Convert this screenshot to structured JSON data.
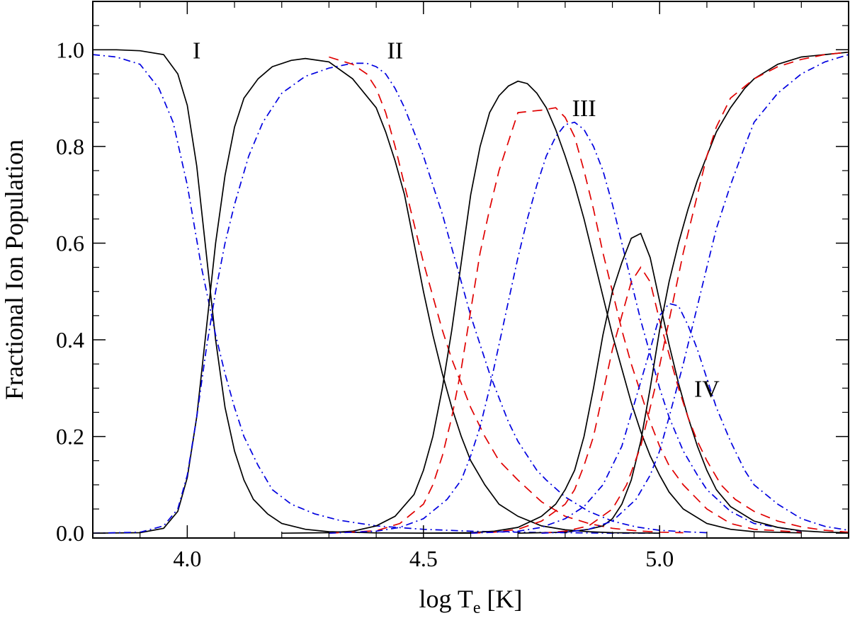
{
  "chart_data": {
    "type": "line",
    "title": "",
    "xlabel": "log T",
    "xlabel_subscript": "e",
    "xlabel_unit": " [K]",
    "ylabel": "Fractional Ion Population",
    "xlim": [
      3.8,
      5.4
    ],
    "ylim": [
      -0.01,
      1.1
    ],
    "x_ticks": [
      4.0,
      4.5,
      5.0
    ],
    "x_tick_labels": [
      "4.0",
      "4.5",
      "5.0"
    ],
    "y_ticks": [
      0.0,
      0.2,
      0.4,
      0.6,
      0.8,
      1.0
    ],
    "y_tick_labels": [
      "0.0",
      "0.2",
      "0.4",
      "0.6",
      "0.8",
      "1.0"
    ],
    "grid": false,
    "legend": "none",
    "line_styles": {
      "solid": {
        "color": "#000000",
        "dash": ""
      },
      "dashed": {
        "color": "#e00000",
        "dash": "14 9"
      },
      "dashdot": {
        "color": "#0000e0",
        "dash": "10 5 2 5"
      }
    },
    "annotations": [
      {
        "text": "I",
        "x": 4.02,
        "y": 1.0
      },
      {
        "text": "II",
        "x": 4.44,
        "y": 1.0
      },
      {
        "text": "III",
        "x": 4.84,
        "y": 0.88
      },
      {
        "text": "IV",
        "x": 5.1,
        "y": 0.3
      }
    ],
    "series": [
      {
        "style": "solid",
        "x": [
          3.8,
          3.85,
          3.9,
          3.95,
          3.98,
          4.0,
          4.02,
          4.04,
          4.06,
          4.08,
          4.1,
          4.12,
          4.14,
          4.17,
          4.2,
          4.25,
          4.3,
          4.4,
          4.5,
          4.6
        ],
        "y": [
          1.0,
          1.0,
          0.998,
          0.99,
          0.95,
          0.885,
          0.76,
          0.58,
          0.4,
          0.26,
          0.17,
          0.11,
          0.07,
          0.04,
          0.02,
          0.008,
          0.003,
          0.0005,
          0.0001,
          0
        ]
      },
      {
        "style": "dashdot",
        "x": [
          3.8,
          3.85,
          3.9,
          3.94,
          3.97,
          4.0,
          4.03,
          4.06,
          4.08,
          4.1,
          4.12,
          4.15,
          4.18,
          4.22,
          4.27,
          4.32,
          4.4,
          4.5,
          4.6,
          4.7,
          4.8,
          4.9,
          5.0
        ],
        "y": [
          0.99,
          0.985,
          0.97,
          0.92,
          0.85,
          0.72,
          0.55,
          0.41,
          0.33,
          0.26,
          0.2,
          0.14,
          0.09,
          0.06,
          0.04,
          0.027,
          0.015,
          0.008,
          0.004,
          0.002,
          0.001,
          0,
          0
        ]
      },
      {
        "style": "solid",
        "x": [
          3.8,
          3.9,
          3.95,
          3.98,
          4.0,
          4.02,
          4.04,
          4.06,
          4.08,
          4.1,
          4.12,
          4.15,
          4.18,
          4.22,
          4.25,
          4.3,
          4.35,
          4.4,
          4.42,
          4.44,
          4.46,
          4.48,
          4.5,
          4.52,
          4.54,
          4.56,
          4.58,
          4.6,
          4.63,
          4.66,
          4.7,
          4.75,
          4.8,
          4.85,
          4.9,
          4.95,
          5.0
        ],
        "y": [
          0,
          0.001,
          0.01,
          0.045,
          0.115,
          0.24,
          0.42,
          0.6,
          0.74,
          0.84,
          0.9,
          0.94,
          0.965,
          0.978,
          0.982,
          0.975,
          0.94,
          0.88,
          0.83,
          0.77,
          0.7,
          0.6,
          0.5,
          0.41,
          0.33,
          0.26,
          0.2,
          0.15,
          0.1,
          0.06,
          0.035,
          0.015,
          0.007,
          0.003,
          0.001,
          0.0005,
          0
        ]
      },
      {
        "style": "dashdot",
        "x": [
          3.8,
          3.9,
          3.95,
          3.98,
          4.0,
          4.02,
          4.04,
          4.06,
          4.08,
          4.1,
          4.13,
          4.16,
          4.2,
          4.25,
          4.3,
          4.35,
          4.38,
          4.4,
          4.42,
          4.44,
          4.46,
          4.48,
          4.5,
          4.52,
          4.54,
          4.56,
          4.58,
          4.6,
          4.62,
          4.64,
          4.66,
          4.68,
          4.7,
          4.72,
          4.74,
          4.76,
          4.8,
          4.85,
          4.9,
          4.95,
          5.0,
          5.05,
          5.1
        ],
        "y": [
          0,
          0.002,
          0.015,
          0.05,
          0.12,
          0.24,
          0.38,
          0.5,
          0.6,
          0.68,
          0.78,
          0.85,
          0.91,
          0.945,
          0.962,
          0.972,
          0.972,
          0.965,
          0.95,
          0.92,
          0.88,
          0.83,
          0.78,
          0.72,
          0.66,
          0.59,
          0.52,
          0.45,
          0.39,
          0.33,
          0.28,
          0.23,
          0.19,
          0.16,
          0.13,
          0.11,
          0.075,
          0.045,
          0.025,
          0.013,
          0.006,
          0.003,
          0.001
        ]
      },
      {
        "style": "dashed",
        "x": [
          4.3,
          4.35,
          4.38,
          4.4,
          4.42,
          4.44,
          4.46,
          4.48,
          4.5,
          4.52,
          4.54,
          4.56,
          4.58,
          4.6,
          4.63,
          4.66,
          4.7,
          4.75,
          4.8,
          4.85,
          4.9,
          4.95,
          5.0,
          5.05
        ],
        "y": [
          0.985,
          0.97,
          0.95,
          0.92,
          0.87,
          0.8,
          0.72,
          0.64,
          0.56,
          0.49,
          0.42,
          0.36,
          0.31,
          0.26,
          0.2,
          0.15,
          0.11,
          0.065,
          0.035,
          0.02,
          0.01,
          0.005,
          0.002,
          0.001
        ]
      },
      {
        "style": "solid",
        "x": [
          4.2,
          4.3,
          4.35,
          4.4,
          4.44,
          4.48,
          4.5,
          4.52,
          4.54,
          4.56,
          4.58,
          4.6,
          4.62,
          4.64,
          4.66,
          4.68,
          4.7,
          4.72,
          4.74,
          4.76,
          4.78,
          4.8,
          4.82,
          4.84,
          4.86,
          4.88,
          4.9,
          4.92,
          4.94,
          4.96,
          4.98,
          5.0,
          5.02,
          5.05,
          5.1,
          5.15,
          5.2,
          5.3
        ],
        "y": [
          0,
          0.001,
          0.004,
          0.015,
          0.035,
          0.08,
          0.13,
          0.2,
          0.3,
          0.42,
          0.56,
          0.7,
          0.8,
          0.87,
          0.905,
          0.925,
          0.935,
          0.93,
          0.91,
          0.88,
          0.835,
          0.78,
          0.72,
          0.65,
          0.57,
          0.49,
          0.41,
          0.34,
          0.27,
          0.21,
          0.16,
          0.12,
          0.085,
          0.05,
          0.02,
          0.008,
          0.003,
          0.0005
        ]
      },
      {
        "style": "dashed",
        "x": [
          4.3,
          4.4,
          4.45,
          4.5,
          4.52,
          4.54,
          4.56,
          4.58,
          4.6,
          4.62,
          4.64,
          4.66,
          4.68,
          4.7,
          4.75,
          4.78,
          4.8,
          4.82,
          4.84,
          4.86,
          4.88,
          4.9,
          4.92,
          4.94,
          4.96,
          4.98,
          5.0,
          5.02,
          5.05,
          5.1,
          5.15,
          5.2,
          5.3
        ],
        "y": [
          0,
          0.005,
          0.02,
          0.06,
          0.1,
          0.16,
          0.24,
          0.34,
          0.46,
          0.58,
          0.67,
          0.75,
          0.81,
          0.87,
          0.875,
          0.88,
          0.86,
          0.82,
          0.75,
          0.67,
          0.58,
          0.5,
          0.42,
          0.35,
          0.29,
          0.23,
          0.18,
          0.14,
          0.1,
          0.05,
          0.02,
          0.008,
          0.002
        ]
      },
      {
        "style": "dashdot",
        "x": [
          4.3,
          4.4,
          4.45,
          4.5,
          4.55,
          4.58,
          4.6,
          4.62,
          4.64,
          4.66,
          4.68,
          4.7,
          4.72,
          4.74,
          4.76,
          4.78,
          4.8,
          4.82,
          4.84,
          4.86,
          4.88,
          4.9,
          4.92,
          4.94,
          4.96,
          4.98,
          5.0,
          5.02,
          5.05,
          5.08,
          5.1,
          5.15,
          5.2,
          5.3
        ],
        "y": [
          0,
          0.004,
          0.012,
          0.03,
          0.07,
          0.11,
          0.16,
          0.22,
          0.3,
          0.39,
          0.48,
          0.57,
          0.65,
          0.72,
          0.78,
          0.82,
          0.845,
          0.85,
          0.835,
          0.8,
          0.75,
          0.68,
          0.6,
          0.52,
          0.44,
          0.37,
          0.3,
          0.24,
          0.17,
          0.12,
          0.09,
          0.045,
          0.02,
          0.004
        ]
      },
      {
        "style": "solid",
        "x": [
          4.5,
          4.6,
          4.65,
          4.7,
          4.75,
          4.78,
          4.8,
          4.82,
          4.84,
          4.86,
          4.88,
          4.9,
          4.92,
          4.94,
          4.96,
          4.98,
          5.0,
          5.02,
          5.04,
          5.06,
          5.08,
          5.1,
          5.12,
          5.15,
          5.2,
          5.25,
          5.3,
          5.35,
          5.4
        ],
        "y": [
          0,
          0.001,
          0.004,
          0.012,
          0.035,
          0.06,
          0.09,
          0.13,
          0.2,
          0.3,
          0.41,
          0.5,
          0.56,
          0.61,
          0.62,
          0.57,
          0.48,
          0.39,
          0.31,
          0.24,
          0.18,
          0.13,
          0.09,
          0.055,
          0.025,
          0.012,
          0.005,
          0.002,
          0.001
        ]
      },
      {
        "style": "dashed",
        "x": [
          4.6,
          4.65,
          4.7,
          4.75,
          4.8,
          4.82,
          4.84,
          4.86,
          4.88,
          4.9,
          4.92,
          4.94,
          4.96,
          4.98,
          5.0,
          5.02,
          5.04,
          5.06,
          5.08,
          5.1,
          5.13,
          5.16,
          5.2,
          5.25,
          5.3,
          5.35,
          5.4
        ],
        "y": [
          0,
          0.002,
          0.008,
          0.025,
          0.06,
          0.09,
          0.14,
          0.2,
          0.29,
          0.38,
          0.45,
          0.52,
          0.55,
          0.52,
          0.44,
          0.37,
          0.3,
          0.24,
          0.19,
          0.15,
          0.1,
          0.07,
          0.045,
          0.025,
          0.013,
          0.006,
          0.002
        ]
      },
      {
        "style": "dashdot",
        "x": [
          4.6,
          4.7,
          4.75,
          4.8,
          4.84,
          4.88,
          4.92,
          4.95,
          4.98,
          5.0,
          5.02,
          5.04,
          5.06,
          5.08,
          5.1,
          5.12,
          5.15,
          5.18,
          5.2,
          5.25,
          5.3,
          5.35,
          5.4
        ],
        "y": [
          0,
          0.004,
          0.012,
          0.03,
          0.055,
          0.1,
          0.18,
          0.28,
          0.38,
          0.45,
          0.475,
          0.47,
          0.43,
          0.38,
          0.32,
          0.26,
          0.19,
          0.13,
          0.1,
          0.06,
          0.03,
          0.014,
          0.006
        ]
      },
      {
        "style": "solid",
        "x": [
          4.7,
          4.8,
          4.85,
          4.88,
          4.9,
          4.92,
          4.94,
          4.96,
          4.98,
          5.0,
          5.02,
          5.04,
          5.06,
          5.08,
          5.1,
          5.12,
          5.15,
          5.18,
          5.2,
          5.25,
          5.3,
          5.35,
          5.4
        ],
        "y": [
          0,
          0.002,
          0.008,
          0.015,
          0.03,
          0.06,
          0.11,
          0.19,
          0.3,
          0.42,
          0.52,
          0.6,
          0.67,
          0.73,
          0.78,
          0.83,
          0.88,
          0.92,
          0.94,
          0.97,
          0.985,
          0.99,
          0.995
        ]
      },
      {
        "style": "dashed",
        "x": [
          4.75,
          4.8,
          4.85,
          4.9,
          4.93,
          4.96,
          4.99,
          5.02,
          5.05,
          5.08,
          5.1,
          5.12,
          5.15,
          5.2,
          5.25,
          5.3,
          5.35,
          5.4
        ],
        "y": [
          0,
          0.004,
          0.015,
          0.05,
          0.1,
          0.18,
          0.3,
          0.44,
          0.58,
          0.7,
          0.78,
          0.84,
          0.9,
          0.94,
          0.965,
          0.98,
          0.99,
          0.995
        ]
      },
      {
        "style": "dashdot",
        "x": [
          4.75,
          4.8,
          4.85,
          4.9,
          4.95,
          4.98,
          5.0,
          5.02,
          5.05,
          5.08,
          5.1,
          5.12,
          5.15,
          5.18,
          5.2,
          5.25,
          5.3,
          5.35,
          5.4
        ],
        "y": [
          0,
          0.002,
          0.008,
          0.025,
          0.07,
          0.12,
          0.17,
          0.24,
          0.35,
          0.47,
          0.55,
          0.63,
          0.72,
          0.8,
          0.85,
          0.91,
          0.95,
          0.975,
          0.99
        ]
      }
    ]
  }
}
